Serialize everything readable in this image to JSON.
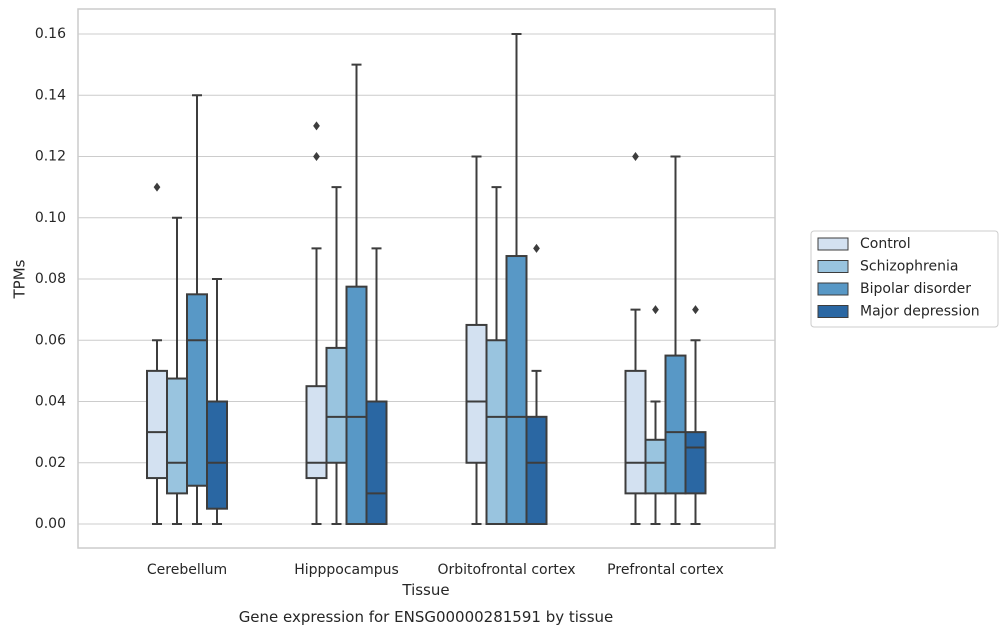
{
  "chart_data": {
    "type": "boxplot",
    "xlabel": "Tissue",
    "ylabel": "TPMs",
    "caption": "Gene expression for ENSG00000281591 by tissue",
    "ylim": [
      -0.008,
      0.168
    ],
    "yticks": [
      "0.00",
      "0.02",
      "0.04",
      "0.06",
      "0.08",
      "0.10",
      "0.12",
      "0.14",
      "0.16"
    ],
    "grid": "horizontal",
    "legend_position": "right",
    "categories": [
      "Cerebellum",
      "Hipppocampus",
      "Orbitofrontal cortex",
      "Prefrontal cortex"
    ],
    "series": [
      {
        "name": "Control",
        "color": "#d3e1f1",
        "boxes": [
          {
            "whislo": 0.0,
            "q1": 0.015,
            "med": 0.03,
            "q3": 0.05,
            "whishi": 0.06,
            "fliers": [
              0.11
            ]
          },
          {
            "whislo": 0.0,
            "q1": 0.015,
            "med": 0.02,
            "q3": 0.045,
            "whishi": 0.09,
            "fliers": [
              0.12,
              0.13
            ]
          },
          {
            "whislo": 0.0,
            "q1": 0.02,
            "med": 0.04,
            "q3": 0.065,
            "whishi": 0.12,
            "fliers": []
          },
          {
            "whislo": 0.0,
            "q1": 0.01,
            "med": 0.02,
            "q3": 0.05,
            "whishi": 0.07,
            "fliers": [
              0.12
            ]
          }
        ]
      },
      {
        "name": "Schizophrenia",
        "color": "#99c4df",
        "boxes": [
          {
            "whislo": 0.0,
            "q1": 0.01,
            "med": 0.02,
            "q3": 0.0475,
            "whishi": 0.1,
            "fliers": []
          },
          {
            "whislo": 0.0,
            "q1": 0.02,
            "med": 0.035,
            "q3": 0.0575,
            "whishi": 0.11,
            "fliers": []
          },
          {
            "whislo": 0.0,
            "q1": 0.0,
            "med": 0.035,
            "q3": 0.06,
            "whishi": 0.11,
            "fliers": []
          },
          {
            "whislo": 0.0,
            "q1": 0.01,
            "med": 0.02,
            "q3": 0.0275,
            "whishi": 0.04,
            "fliers": [
              0.07
            ]
          }
        ]
      },
      {
        "name": "Bipolar disorder",
        "color": "#5898c6",
        "boxes": [
          {
            "whislo": 0.0,
            "q1": 0.0125,
            "med": 0.06,
            "q3": 0.075,
            "whishi": 0.14,
            "fliers": []
          },
          {
            "whislo": 0.0,
            "q1": 0.0,
            "med": 0.035,
            "q3": 0.0775,
            "whishi": 0.15,
            "fliers": []
          },
          {
            "whislo": 0.0,
            "q1": 0.0,
            "med": 0.035,
            "q3": 0.0875,
            "whishi": 0.16,
            "fliers": []
          },
          {
            "whislo": 0.0,
            "q1": 0.01,
            "med": 0.03,
            "q3": 0.055,
            "whishi": 0.12,
            "fliers": []
          }
        ]
      },
      {
        "name": "Major depression",
        "color": "#2a67a3",
        "boxes": [
          {
            "whislo": 0.0,
            "q1": 0.005,
            "med": 0.02,
            "q3": 0.04,
            "whishi": 0.08,
            "fliers": []
          },
          {
            "whislo": 0.0,
            "q1": 0.0,
            "med": 0.01,
            "q3": 0.04,
            "whishi": 0.09,
            "fliers": []
          },
          {
            "whislo": 0.0,
            "q1": 0.0,
            "med": 0.02,
            "q3": 0.035,
            "whishi": 0.05,
            "fliers": [
              0.09
            ]
          },
          {
            "whislo": 0.0,
            "q1": 0.01,
            "med": 0.025,
            "q3": 0.03,
            "whishi": 0.06,
            "fliers": [
              0.07
            ]
          }
        ]
      }
    ]
  }
}
